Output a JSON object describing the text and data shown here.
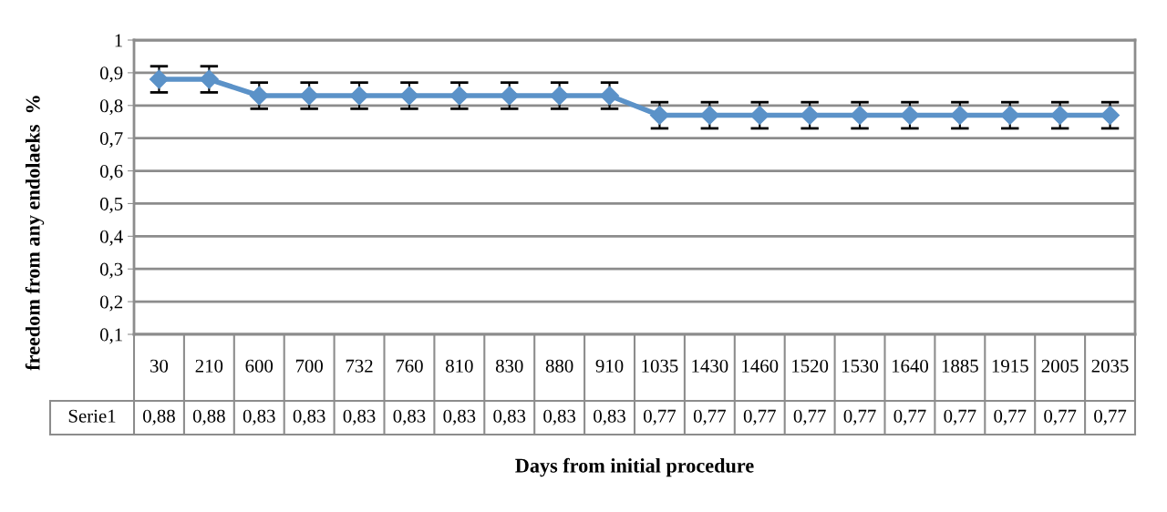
{
  "chart_data": {
    "type": "line",
    "xlabel": "Days from initial procedure",
    "ylabel": "freedom from any endolaeks  %",
    "categories": [
      "30",
      "210",
      "600",
      "700",
      "732",
      "760",
      "810",
      "830",
      "880",
      "910",
      "1035",
      "1430",
      "1460",
      "1520",
      "1530",
      "1640",
      "1885",
      "1915",
      "2005",
      "2035"
    ],
    "series": [
      {
        "name": "Serie1",
        "color": "#5b92c8",
        "values": [
          0.88,
          0.88,
          0.83,
          0.83,
          0.83,
          0.83,
          0.83,
          0.83,
          0.83,
          0.83,
          0.77,
          0.77,
          0.77,
          0.77,
          0.77,
          0.77,
          0.77,
          0.77,
          0.77,
          0.77
        ],
        "errors": [
          0.04,
          0.04,
          0.04,
          0.04,
          0.04,
          0.04,
          0.04,
          0.04,
          0.04,
          0.04,
          0.04,
          0.04,
          0.04,
          0.04,
          0.04,
          0.04,
          0.04,
          0.04,
          0.04,
          0.04
        ],
        "value_labels": [
          "0,88",
          "0,88",
          "0,83",
          "0,83",
          "0,83",
          "0,83",
          "0,83",
          "0,83",
          "0,83",
          "0,83",
          "0,77",
          "0,77",
          "0,77",
          "0,77",
          "0,77",
          "0,77",
          "0,77",
          "0,77",
          "0,77",
          "0,77"
        ]
      }
    ],
    "ylim": [
      0.1,
      1
    ],
    "yticks": [
      {
        "value": 0.1,
        "label": "0,1"
      },
      {
        "value": 0.2,
        "label": "0,2"
      },
      {
        "value": 0.3,
        "label": "0,3"
      },
      {
        "value": 0.4,
        "label": "0,4"
      },
      {
        "value": 0.5,
        "label": "0,5"
      },
      {
        "value": 0.6,
        "label": "0,6"
      },
      {
        "value": 0.7,
        "label": "0,7"
      },
      {
        "value": 0.8,
        "label": "0,8"
      },
      {
        "value": 0.9,
        "label": "0,9"
      },
      {
        "value": 1,
        "label": "1"
      }
    ],
    "grid": "y",
    "marker": "diamond",
    "line_style": "solid",
    "legend": false
  }
}
